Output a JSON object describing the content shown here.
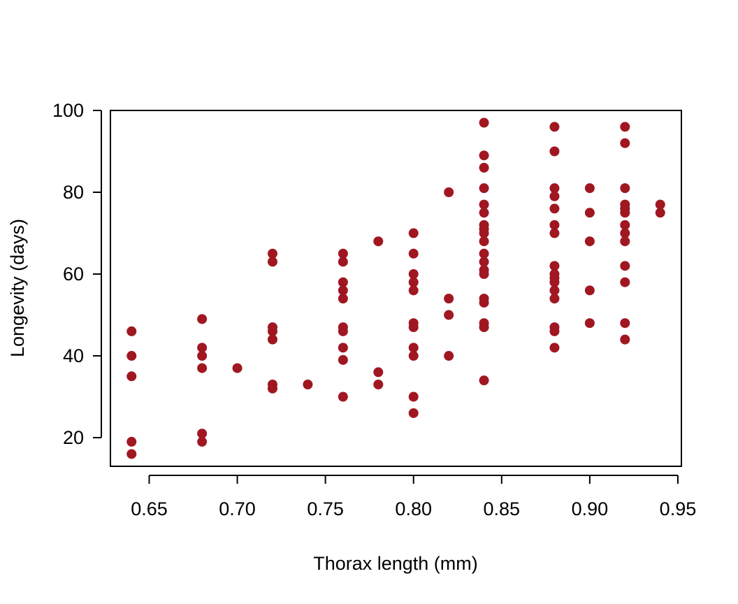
{
  "chart_data": {
    "type": "scatter",
    "title": "",
    "xlabel": "Thorax length (mm)",
    "ylabel": "Longevity (days)",
    "xlim": [
      0.628,
      0.952
    ],
    "ylim": [
      13,
      100
    ],
    "x_ticks": [
      0.65,
      0.7,
      0.75,
      0.8,
      0.85,
      0.9,
      0.95
    ],
    "x_tick_labels": [
      "0.65",
      "0.70",
      "0.75",
      "0.80",
      "0.85",
      "0.90",
      "0.95"
    ],
    "y_ticks": [
      20,
      40,
      60,
      80,
      100
    ],
    "y_tick_labels": [
      "20",
      "40",
      "60",
      "80",
      "100"
    ],
    "grid": false,
    "legend": "none",
    "point_color": "#a01721",
    "series": [
      {
        "points": [
          [
            0.64,
            46
          ],
          [
            0.64,
            40
          ],
          [
            0.64,
            35
          ],
          [
            0.64,
            19
          ],
          [
            0.64,
            16
          ],
          [
            0.68,
            49
          ],
          [
            0.68,
            42
          ],
          [
            0.68,
            40
          ],
          [
            0.68,
            37
          ],
          [
            0.68,
            21
          ],
          [
            0.68,
            19
          ],
          [
            0.7,
            37
          ],
          [
            0.72,
            65
          ],
          [
            0.72,
            63
          ],
          [
            0.72,
            47
          ],
          [
            0.72,
            46
          ],
          [
            0.72,
            44
          ],
          [
            0.72,
            33
          ],
          [
            0.72,
            32
          ],
          [
            0.74,
            33
          ],
          [
            0.76,
            65
          ],
          [
            0.76,
            63
          ],
          [
            0.76,
            58
          ],
          [
            0.76,
            56
          ],
          [
            0.76,
            54
          ],
          [
            0.76,
            47
          ],
          [
            0.76,
            46
          ],
          [
            0.76,
            42
          ],
          [
            0.76,
            39
          ],
          [
            0.76,
            30
          ],
          [
            0.78,
            68
          ],
          [
            0.78,
            36
          ],
          [
            0.78,
            33
          ],
          [
            0.8,
            70
          ],
          [
            0.8,
            65
          ],
          [
            0.8,
            60
          ],
          [
            0.8,
            58
          ],
          [
            0.8,
            56
          ],
          [
            0.8,
            48
          ],
          [
            0.8,
            47
          ],
          [
            0.8,
            42
          ],
          [
            0.8,
            40
          ],
          [
            0.8,
            30
          ],
          [
            0.8,
            26
          ],
          [
            0.82,
            80
          ],
          [
            0.82,
            54
          ],
          [
            0.82,
            50
          ],
          [
            0.82,
            40
          ],
          [
            0.84,
            97
          ],
          [
            0.84,
            89
          ],
          [
            0.84,
            86
          ],
          [
            0.84,
            81
          ],
          [
            0.84,
            77
          ],
          [
            0.84,
            75
          ],
          [
            0.84,
            72
          ],
          [
            0.84,
            71
          ],
          [
            0.84,
            70
          ],
          [
            0.84,
            68
          ],
          [
            0.84,
            65
          ],
          [
            0.84,
            63
          ],
          [
            0.84,
            61
          ],
          [
            0.84,
            60
          ],
          [
            0.84,
            54
          ],
          [
            0.84,
            53
          ],
          [
            0.84,
            48
          ],
          [
            0.84,
            47
          ],
          [
            0.84,
            34
          ],
          [
            0.88,
            96
          ],
          [
            0.88,
            90
          ],
          [
            0.88,
            81
          ],
          [
            0.88,
            79
          ],
          [
            0.88,
            76
          ],
          [
            0.88,
            72
          ],
          [
            0.88,
            70
          ],
          [
            0.88,
            62
          ],
          [
            0.88,
            60
          ],
          [
            0.88,
            59
          ],
          [
            0.88,
            58
          ],
          [
            0.88,
            56
          ],
          [
            0.88,
            54
          ],
          [
            0.88,
            47
          ],
          [
            0.88,
            46
          ],
          [
            0.88,
            42
          ],
          [
            0.9,
            81
          ],
          [
            0.9,
            75
          ],
          [
            0.9,
            68
          ],
          [
            0.9,
            56
          ],
          [
            0.9,
            48
          ],
          [
            0.92,
            96
          ],
          [
            0.92,
            92
          ],
          [
            0.92,
            81
          ],
          [
            0.92,
            77
          ],
          [
            0.92,
            76
          ],
          [
            0.92,
            75
          ],
          [
            0.92,
            72
          ],
          [
            0.92,
            70
          ],
          [
            0.92,
            68
          ],
          [
            0.92,
            62
          ],
          [
            0.92,
            58
          ],
          [
            0.92,
            48
          ],
          [
            0.92,
            44
          ],
          [
            0.94,
            77
          ],
          [
            0.94,
            75
          ]
        ]
      }
    ]
  }
}
